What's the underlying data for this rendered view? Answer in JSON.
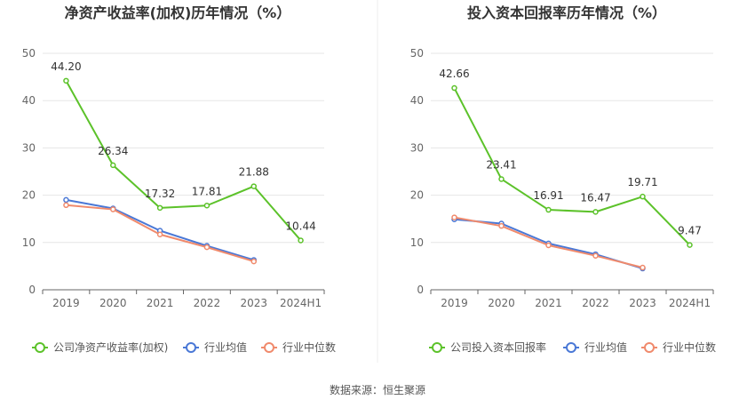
{
  "source_label": "数据来源：恒生聚源",
  "chart_data": [
    {
      "type": "line",
      "title": "净资产收益率(加权)历年情况（%）",
      "categories": [
        "2019",
        "2020",
        "2021",
        "2022",
        "2023",
        "2024H1"
      ],
      "ylim": [
        0,
        50
      ],
      "yticks": [
        0,
        10,
        20,
        30,
        40,
        50
      ],
      "grid": true,
      "legend_position": "bottom",
      "series": [
        {
          "name": "公司净资产收益率(加权)",
          "color": "#5cc22a",
          "values": [
            44.2,
            26.34,
            17.32,
            17.81,
            21.88,
            10.44
          ],
          "labels": [
            "44.20",
            "26.34",
            "17.32",
            "17.81",
            "21.88",
            "10.44"
          ]
        },
        {
          "name": "行业均值",
          "color": "#4a78d6",
          "values": [
            19.0,
            17.2,
            12.5,
            9.3,
            6.3,
            null
          ]
        },
        {
          "name": "行业中位数",
          "color": "#f08a6c",
          "values": [
            17.9,
            17.0,
            11.7,
            9.0,
            6.0,
            null
          ]
        }
      ]
    },
    {
      "type": "line",
      "title": "投入资本回报率历年情况（%）",
      "categories": [
        "2019",
        "2020",
        "2021",
        "2022",
        "2023",
        "2024H1"
      ],
      "ylim": [
        0,
        50
      ],
      "yticks": [
        0,
        10,
        20,
        30,
        40,
        50
      ],
      "grid": true,
      "legend_position": "bottom",
      "series": [
        {
          "name": "公司投入资本回报率",
          "color": "#5cc22a",
          "values": [
            42.66,
            23.41,
            16.91,
            16.47,
            19.71,
            9.47
          ],
          "labels": [
            "42.66",
            "23.41",
            "16.91",
            "16.47",
            "19.71",
            "9.47"
          ]
        },
        {
          "name": "行业均值",
          "color": "#4a78d6",
          "values": [
            14.9,
            14.0,
            9.8,
            7.5,
            4.5,
            null
          ]
        },
        {
          "name": "行业中位数",
          "color": "#f08a6c",
          "values": [
            15.3,
            13.5,
            9.4,
            7.2,
            4.7,
            null
          ]
        }
      ]
    }
  ]
}
